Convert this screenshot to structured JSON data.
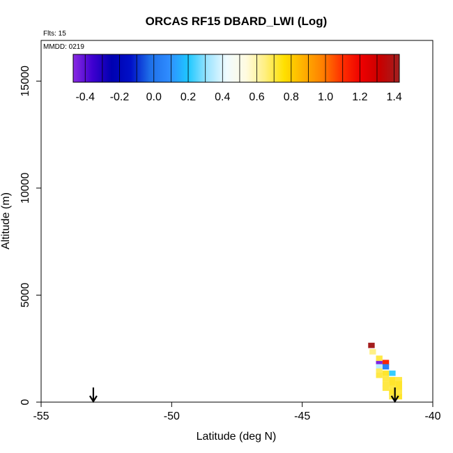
{
  "chart_data": {
    "type": "heatmap",
    "title": "ORCAS RF15 DBARD_LWI (Log)",
    "xlabel": "Latitude (deg N)",
    "ylabel": "Altitude (m)",
    "xlim": [
      -55,
      -40
    ],
    "ylim": [
      0,
      16900
    ],
    "xticks": [
      "-55",
      "-50",
      "-45",
      "-40"
    ],
    "xtick_values": [
      -55,
      -50,
      -45,
      -40
    ],
    "yticks": [
      "0",
      "5000",
      "10000",
      "15000"
    ],
    "ytick_values": [
      0,
      5000,
      10000,
      15000
    ],
    "flts_label": "Flts: 15",
    "mmdd_label": "MMDD: 0219",
    "colorbar": {
      "range": [
        -0.47,
        1.43
      ],
      "ticks": [
        "-0.4",
        "-0.2",
        "0.0",
        "0.2",
        "0.4",
        "0.6",
        "0.8",
        "1.0",
        "1.2",
        "1.4"
      ],
      "tick_values": [
        -0.4,
        -0.2,
        0.0,
        0.2,
        0.4,
        0.6,
        0.8,
        1.0,
        1.2,
        1.4
      ],
      "colors": [
        "#8a2be2",
        "#3f00d0",
        "#0000b0",
        "#0010c8",
        "#1e6fe8",
        "#2f8cff",
        "#1ec8ff",
        "#9ee4ff",
        "#f0fbff",
        "#fffbe0",
        "#ffef80",
        "#ffe000",
        "#ffb000",
        "#ff8000",
        "#ff3000",
        "#ee0000",
        "#c80000",
        "#a02020"
      ]
    },
    "markers": [
      {
        "type": "arrow",
        "lat": -53.0
      },
      {
        "type": "arrow",
        "lat": -41.45
      }
    ],
    "cells": [
      {
        "lat": -42.35,
        "alt": 2650,
        "value": 1.42
      },
      {
        "lat": -42.3,
        "alt": 2350,
        "value": 0.64
      },
      {
        "lat": -42.05,
        "alt": 1850,
        "value": -0.45
      },
      {
        "lat": -41.8,
        "alt": 1850,
        "value": 1.12
      },
      {
        "lat": -41.8,
        "alt": 1650,
        "value": 0.05
      },
      {
        "lat": -42.05,
        "alt": 1650,
        "value": 0.35
      },
      {
        "lat": -42.05,
        "alt": 2050,
        "value": 0.7
      },
      {
        "lat": -42.05,
        "alt": 1450,
        "value": 0.68
      },
      {
        "lat": -41.55,
        "alt": 1350,
        "value": 0.22
      },
      {
        "lat": -41.8,
        "alt": 1350,
        "value": 0.72
      },
      {
        "lat": -42.05,
        "alt": 1250,
        "value": 0.7
      },
      {
        "lat": -41.8,
        "alt": 1100,
        "value": 0.7
      },
      {
        "lat": -41.55,
        "alt": 1050,
        "value": 0.72
      },
      {
        "lat": -41.3,
        "alt": 1050,
        "value": 0.7
      },
      {
        "lat": -41.55,
        "alt": 850,
        "value": 0.72
      },
      {
        "lat": -41.3,
        "alt": 850,
        "value": 0.72
      },
      {
        "lat": -41.8,
        "alt": 850,
        "value": 0.7
      },
      {
        "lat": -41.55,
        "alt": 650,
        "value": 0.7
      },
      {
        "lat": -41.3,
        "alt": 650,
        "value": 0.72
      },
      {
        "lat": -41.55,
        "alt": 450,
        "value": 0.72
      },
      {
        "lat": -41.3,
        "alt": 450,
        "value": 0.7
      },
      {
        "lat": -41.55,
        "alt": 250,
        "value": 0.7
      },
      {
        "lat": -41.3,
        "alt": 250,
        "value": 0.72
      },
      {
        "lat": -41.8,
        "alt": 650,
        "value": 0.7
      }
    ]
  }
}
